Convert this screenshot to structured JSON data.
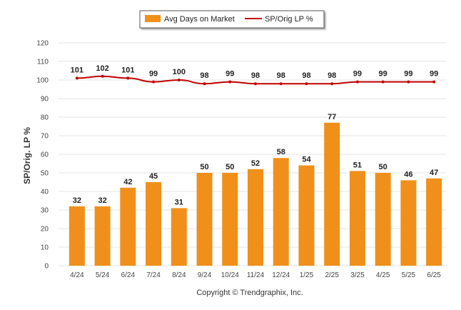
{
  "chart_data": {
    "type": "bar",
    "categories": [
      "4/24",
      "5/24",
      "6/24",
      "7/24",
      "8/24",
      "9/24",
      "10/24",
      "11/24",
      "12/24",
      "1/25",
      "2/25",
      "3/25",
      "4/25",
      "5/25",
      "6/25"
    ],
    "series": [
      {
        "name": "Avg Days on Market",
        "type": "bar",
        "color": "#F0901A",
        "values": [
          32,
          32,
          42,
          45,
          31,
          50,
          50,
          52,
          58,
          54,
          77,
          51,
          50,
          46,
          47
        ]
      },
      {
        "name": "SP/Orig LP %",
        "type": "line",
        "color": "#C00000",
        "values": [
          101,
          102,
          101,
          99,
          100,
          98,
          99,
          98,
          98,
          98,
          98,
          99,
          99,
          99,
          99
        ]
      }
    ],
    "ylabel": "SP/Orig. LP %",
    "ylim": [
      0,
      120
    ],
    "yticks": [
      "0",
      "10",
      "20",
      "30",
      "40",
      "50",
      "60",
      "70",
      "80",
      "90",
      "100",
      "110",
      "120"
    ],
    "grid": true,
    "legend_position": "top-center",
    "footer": "Copyright © Trendgraphix, Inc."
  }
}
